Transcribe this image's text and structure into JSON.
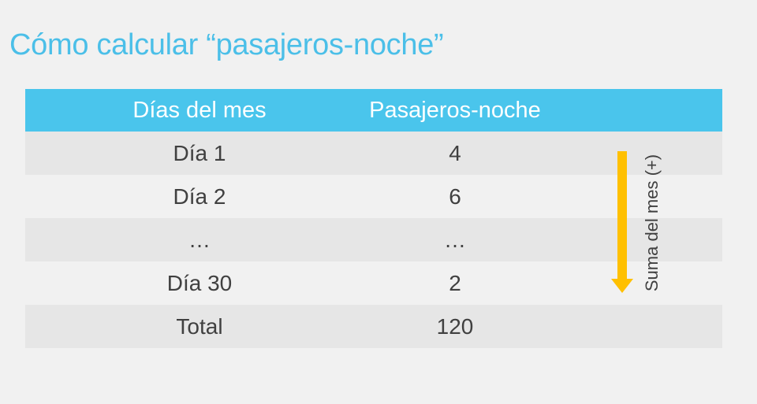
{
  "title": "Cómo calcular “pasajeros-noche”",
  "table": {
    "headers": [
      "Días del mes",
      "Pasajeros-noche"
    ],
    "rows": [
      {
        "day": "Día 1",
        "value": "4"
      },
      {
        "day": "Día 2",
        "value": "6"
      },
      {
        "day": "…",
        "value": "…"
      },
      {
        "day": "Día 30",
        "value": "2"
      },
      {
        "day": "Total",
        "value": "120"
      }
    ]
  },
  "annotation": {
    "label": "Suma del mes (+)",
    "arrow_color": "#ffc000"
  },
  "colors": {
    "title": "#4bbfe8",
    "header_bg": "#4ac5ec",
    "row_shade": "#e6e6e6"
  }
}
